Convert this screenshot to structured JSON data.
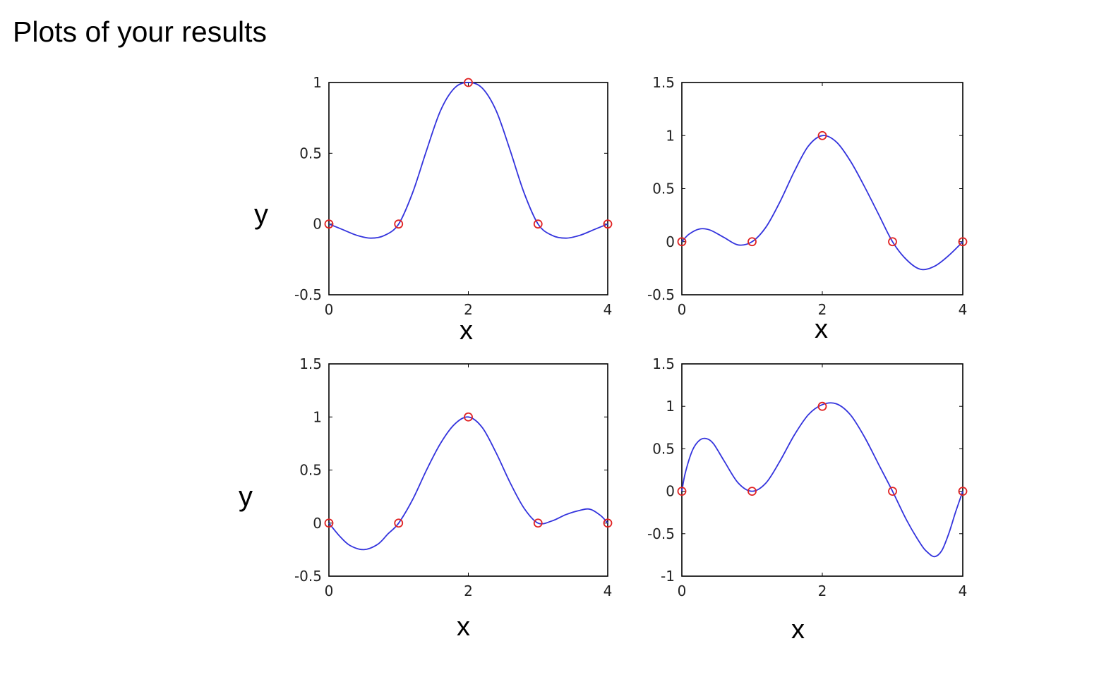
{
  "page": {
    "title": "Plots of your results"
  },
  "colors": {
    "curve": "#3333dd",
    "marker": "#e02222",
    "axes": "#000000"
  },
  "chart_data": [
    {
      "type": "line",
      "title": "",
      "xlabel": "x",
      "ylabel": "y",
      "xlim": [
        0,
        4
      ],
      "ylim": [
        -0.5,
        1
      ],
      "xticks": [
        "0",
        "2",
        "4"
      ],
      "yticks": [
        "-0.5",
        "0",
        "0.5",
        "1"
      ],
      "grid": false,
      "series": [
        {
          "style": "line",
          "x": [
            0,
            0.2,
            0.4,
            0.6,
            0.8,
            1.0,
            1.2,
            1.4,
            1.6,
            1.8,
            2.0,
            2.2,
            2.4,
            2.6,
            2.8,
            3.0,
            3.2,
            3.4,
            3.6,
            3.8,
            4.0
          ],
          "y": [
            0,
            -0.04,
            -0.08,
            -0.1,
            -0.08,
            0,
            0.22,
            0.52,
            0.8,
            0.96,
            1,
            0.96,
            0.8,
            0.52,
            0.22,
            0,
            -0.08,
            -0.1,
            -0.08,
            -0.04,
            0
          ]
        },
        {
          "style": "markers",
          "x": [
            0,
            1,
            2,
            3,
            4
          ],
          "y": [
            0,
            0,
            1,
            0,
            0
          ]
        }
      ]
    },
    {
      "type": "line",
      "title": "",
      "xlabel": "x",
      "ylabel": "",
      "xlim": [
        0,
        4
      ],
      "ylim": [
        -0.5,
        1.5
      ],
      "xticks": [
        "0",
        "2",
        "4"
      ],
      "yticks": [
        "-0.5",
        "0",
        "0.5",
        "1",
        "1.5"
      ],
      "grid": false,
      "series": [
        {
          "style": "line",
          "x": [
            0,
            0.1,
            0.25,
            0.4,
            0.6,
            0.8,
            1.0,
            1.2,
            1.4,
            1.6,
            1.8,
            2.0,
            2.2,
            2.4,
            2.6,
            2.8,
            3.0,
            3.2,
            3.4,
            3.6,
            3.8,
            4.0
          ],
          "y": [
            0,
            0.07,
            0.12,
            0.11,
            0.04,
            -0.03,
            0,
            0.14,
            0.38,
            0.66,
            0.9,
            1,
            0.94,
            0.76,
            0.52,
            0.26,
            0,
            -0.17,
            -0.26,
            -0.23,
            -0.13,
            0
          ]
        },
        {
          "style": "markers",
          "x": [
            0,
            1,
            2,
            3,
            4
          ],
          "y": [
            0,
            0,
            1,
            0,
            0
          ]
        }
      ]
    },
    {
      "type": "line",
      "title": "",
      "xlabel": "x",
      "ylabel": "y",
      "xlim": [
        0,
        4
      ],
      "ylim": [
        -0.5,
        1.5
      ],
      "xticks": [
        "0",
        "2",
        "4"
      ],
      "yticks": [
        "-0.5",
        "0",
        "0.5",
        "1",
        "1.5"
      ],
      "grid": false,
      "series": [
        {
          "style": "line",
          "x": [
            0,
            0.15,
            0.3,
            0.5,
            0.7,
            0.85,
            1.0,
            1.2,
            1.4,
            1.6,
            1.8,
            2.0,
            2.2,
            2.4,
            2.6,
            2.8,
            3.0,
            3.2,
            3.4,
            3.6,
            3.75,
            3.9,
            4.0
          ],
          "y": [
            0,
            -0.12,
            -0.21,
            -0.25,
            -0.2,
            -0.1,
            0,
            0.22,
            0.5,
            0.75,
            0.93,
            1,
            0.9,
            0.66,
            0.38,
            0.14,
            0,
            0.02,
            0.08,
            0.12,
            0.13,
            0.07,
            0
          ]
        },
        {
          "style": "markers",
          "x": [
            0,
            1,
            2,
            3,
            4
          ],
          "y": [
            0,
            0,
            1,
            0,
            0
          ]
        }
      ]
    },
    {
      "type": "line",
      "title": "",
      "xlabel": "x",
      "ylabel": "",
      "xlim": [
        0,
        4
      ],
      "ylim": [
        -1,
        1.5
      ],
      "xticks": [
        "0",
        "2",
        "4"
      ],
      "yticks": [
        "-1",
        "-0.5",
        "0",
        "0.5",
        "1",
        "1.5"
      ],
      "grid": false,
      "series": [
        {
          "style": "line",
          "x": [
            0,
            0.05,
            0.15,
            0.25,
            0.35,
            0.45,
            0.6,
            0.8,
            1.0,
            1.2,
            1.4,
            1.6,
            1.8,
            2.0,
            2.2,
            2.4,
            2.6,
            2.8,
            3.0,
            3.2,
            3.4,
            3.5,
            3.6,
            3.7,
            3.8,
            3.9,
            4.0
          ],
          "y": [
            0,
            0.22,
            0.48,
            0.6,
            0.62,
            0.56,
            0.36,
            0.1,
            0,
            0.1,
            0.36,
            0.66,
            0.9,
            1.02,
            1.03,
            0.9,
            0.64,
            0.32,
            0,
            -0.34,
            -0.62,
            -0.72,
            -0.77,
            -0.7,
            -0.5,
            -0.24,
            0
          ]
        },
        {
          "style": "markers",
          "x": [
            0,
            1,
            2,
            3,
            4
          ],
          "y": [
            0,
            0,
            1,
            0,
            0
          ]
        }
      ]
    }
  ]
}
